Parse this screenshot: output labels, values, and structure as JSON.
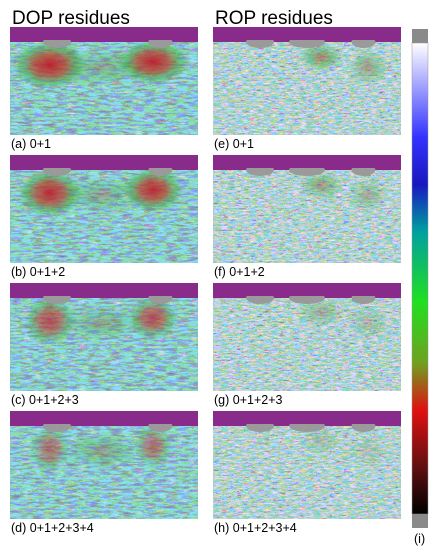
{
  "columns": [
    {
      "title": "DOP residues",
      "panels": [
        {
          "label": "(a) 0+1"
        },
        {
          "label": "(b) 0+1+2"
        },
        {
          "label": "(c) 0+1+2+3"
        },
        {
          "label": "(d) 0+1+2+3+4"
        }
      ]
    },
    {
      "title": "ROP residues",
      "panels": [
        {
          "label": "(e) 0+1"
        },
        {
          "label": "(f) 0+1+2"
        },
        {
          "label": "(g) 0+1+2+3"
        },
        {
          "label": "(h) 0+1+2+3+4"
        }
      ]
    }
  ],
  "colorbar": {
    "label": "(i)"
  }
}
